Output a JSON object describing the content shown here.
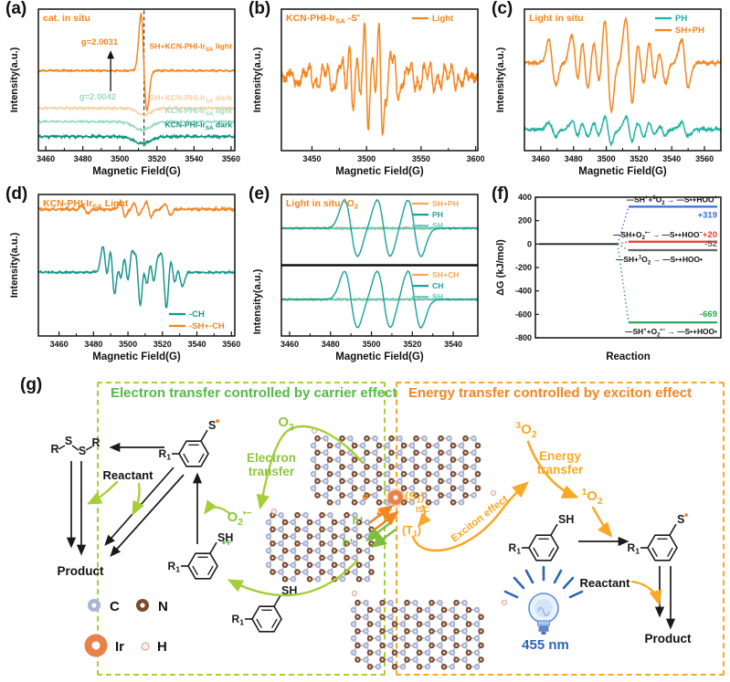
{
  "chart_data": [
    {
      "id": "a",
      "type": "line",
      "panel_label": "(a)",
      "title": {
        "html": "cat. in situ",
        "color": "#F5851F"
      },
      "xlabel": "Magnetic Field(G)",
      "ylabel": "Intensity(a.u.)",
      "xlim": [
        3456,
        3562
      ],
      "xticks": [
        3460,
        3480,
        3500,
        3520,
        3540,
        3560
      ],
      "marker_line_x": 3513,
      "annotations": [
        {
          "html": "g=2.0031",
          "color": "#F5851F",
          "x": 3489,
          "yf": 0.75
        },
        {
          "html": "g=2.0042",
          "color": "#97DBC4",
          "x": 3488,
          "yf": 0.36
        }
      ],
      "arrow": {
        "x": 3495,
        "y0f": 0.42,
        "y1f": 0.7
      },
      "series": [
        {
          "name": "SH+KCN-PHI-Ir<sub>SA</sub> light",
          "color": "#F5851F",
          "baseline": 0.565,
          "noise": 0.005,
          "signal": {
            "kind": "sharp",
            "center": 3513,
            "width": 1.6,
            "up": 0.4,
            "down": 0.28
          },
          "label": {
            "yf": 0.72
          }
        },
        {
          "name": "SH+KCN-PHI-Ir<sub>SA</sub> dark",
          "color": "#FBCFA0",
          "baseline": 0.3,
          "noise": 0.006,
          "signal": {
            "kind": "dip",
            "center": 3513,
            "width": 3.5,
            "amp": 0.05
          },
          "label": {
            "yf": 0.355
          }
        },
        {
          "name": "KCN-PHI-Ir<sub>SA</sub> light",
          "color": "#97DBC4",
          "baseline": 0.205,
          "noise": 0.006,
          "signal": {
            "kind": "dip",
            "center": 3512,
            "width": 4.5,
            "amp": 0.06
          },
          "label": {
            "yf": 0.265
          }
        },
        {
          "name": "KCN-PHI-Ir<sub>SA</sub> dark",
          "color": "#12917E",
          "baseline": 0.1,
          "noise": 0.007,
          "signal": {
            "kind": "dip",
            "center": 3512,
            "width": 4.5,
            "amp": 0.05
          },
          "label": {
            "yf": 0.165
          }
        }
      ]
    },
    {
      "id": "b",
      "type": "line",
      "panel_label": "(b)",
      "title": {
        "html": "KCN-PHI-Ir<sub>SA</sub>  -S<sup>•</sup>",
        "color": "#F5851F"
      },
      "legend": {
        "pos": "tr",
        "items": [
          {
            "label": "Light",
            "color": "#F5851F"
          }
        ]
      },
      "xlabel": "Magnetic Field(G)",
      "ylabel": "Intensity(a.u.)",
      "xlim": [
        3422,
        3602
      ],
      "xticks": [
        3450,
        3500,
        3550,
        3600
      ],
      "series": [
        {
          "name": "Light",
          "color": "#F5851F",
          "baseline": 0.52,
          "noise": 0.035,
          "signal": {
            "kind": "multiplet",
            "width": 1.7,
            "lines": [
              {
                "c": 3433,
                "a": 0.06
              },
              {
                "c": 3441,
                "a": -0.05
              },
              {
                "c": 3450,
                "a": 0.08
              },
              {
                "c": 3458,
                "a": -0.06
              },
              {
                "c": 3466,
                "a": 0.07
              },
              {
                "c": 3473,
                "a": -0.08
              },
              {
                "c": 3480,
                "a": 0.1
              },
              {
                "c": 3486,
                "a": 0.22
              },
              {
                "c": 3493,
                "a": 0.12
              },
              {
                "c": 3500,
                "a": 0.38
              },
              {
                "c": 3507,
                "a": 0.16
              },
              {
                "c": 3513,
                "a": 0.42
              },
              {
                "c": 3520,
                "a": -0.14
              },
              {
                "c": 3527,
                "a": 0.16
              },
              {
                "c": 3535,
                "a": -0.08
              },
              {
                "c": 3543,
                "a": 0.08
              },
              {
                "c": 3551,
                "a": -0.07
              },
              {
                "c": 3560,
                "a": 0.08
              },
              {
                "c": 3570,
                "a": -0.06
              },
              {
                "c": 3580,
                "a": 0.07
              },
              {
                "c": 3590,
                "a": -0.05
              }
            ]
          }
        }
      ]
    },
    {
      "id": "c",
      "type": "line",
      "panel_label": "(c)",
      "title": {
        "html": "Light in situ",
        "color": "#F5851F"
      },
      "legend": {
        "pos": "tr",
        "items": [
          {
            "label": "PH",
            "color": "#20B2A0"
          },
          {
            "label": "SH+PH",
            "color": "#F5851F"
          }
        ]
      },
      "xlabel": "Magnetic Field(G)",
      "ylabel": "Intensity(a.u.)",
      "xlim": [
        3450,
        3570
      ],
      "xticks": [
        3460,
        3480,
        3500,
        3520,
        3540,
        3560
      ],
      "series": [
        {
          "name": "SH+PH",
          "color": "#F5851F",
          "baseline": 0.62,
          "noise": 0.012,
          "signal": {
            "kind": "multiplet",
            "width": 2.1,
            "lines": [
              {
                "c": 3467,
                "a": 0.16
              },
              {
                "c": 3481,
                "a": 0.2
              },
              {
                "c": 3487,
                "a": 0.22
              },
              {
                "c": 3494,
                "a": 0.18
              },
              {
                "c": 3501,
                "a": 0.34
              },
              {
                "c": 3514,
                "a": 0.32
              },
              {
                "c": 3521,
                "a": 0.18
              },
              {
                "c": 3528,
                "a": 0.17
              },
              {
                "c": 3534,
                "a": 0.14
              },
              {
                "c": 3548,
                "a": 0.17
              }
            ]
          }
        },
        {
          "name": "PH",
          "color": "#20B2A0",
          "baseline": 0.15,
          "noise": 0.01,
          "signal": {
            "kind": "multiplet",
            "width": 2.0,
            "lines": [
              {
                "c": 3467,
                "a": 0.05
              },
              {
                "c": 3481,
                "a": 0.06
              },
              {
                "c": 3487,
                "a": 0.06
              },
              {
                "c": 3494,
                "a": 0.05
              },
              {
                "c": 3501,
                "a": 0.1
              },
              {
                "c": 3514,
                "a": 0.09
              },
              {
                "c": 3521,
                "a": 0.06
              },
              {
                "c": 3528,
                "a": 0.05
              },
              {
                "c": 3534,
                "a": 0.04
              },
              {
                "c": 3548,
                "a": 0.05
              }
            ]
          }
        }
      ]
    },
    {
      "id": "d",
      "type": "line",
      "panel_label": "(d)",
      "title": {
        "html": "KCN-PHI-Ir<sub>SA</sub>  Light",
        "color": "#F5851F"
      },
      "legend": {
        "pos": "br",
        "items": [
          {
            "label": "-CH",
            "color": "#17968C"
          },
          {
            "label": "-SH+-CH",
            "color": "#F5851F"
          }
        ]
      },
      "xlabel": "Magnetic Field(G)",
      "ylabel": "Intensity(a.u.)",
      "xlim": [
        3448,
        3562
      ],
      "xticks": [
        3460,
        3480,
        3500,
        3520,
        3540,
        3560
      ],
      "series": [
        {
          "name": "-SH+-CH",
          "color": "#F5851F",
          "baseline": 0.895,
          "noise": 0.008,
          "signal": {
            "kind": "multiplet",
            "width": 1.5,
            "lines": [
              {
                "c": 3475,
                "a": 0.03
              },
              {
                "c": 3497,
                "a": 0.05
              },
              {
                "c": 3505,
                "a": 0.04
              },
              {
                "c": 3512,
                "a": 0.05
              },
              {
                "c": 3523,
                "a": 0.04
              }
            ]
          }
        },
        {
          "name": "-CH",
          "color": "#17968C",
          "baseline": 0.45,
          "noise": 0.006,
          "signal": {
            "kind": "multiplet",
            "width": 1.6,
            "lines": [
              {
                "c": 3487,
                "a": 0.18
              },
              {
                "c": 3491,
                "a": 0.27
              },
              {
                "c": 3495,
                "a": 0.16
              },
              {
                "c": 3499,
                "a": 0.2
              },
              {
                "c": 3503,
                "a": 0.22
              },
              {
                "c": 3506,
                "a": 0.34
              },
              {
                "c": 3510,
                "a": 0.18
              },
              {
                "c": 3514,
                "a": 0.16
              },
              {
                "c": 3518,
                "a": 0.15
              },
              {
                "c": 3521,
                "a": 0.28
              },
              {
                "c": 3526,
                "a": 0.14
              },
              {
                "c": 3530,
                "a": 0.1
              }
            ]
          }
        }
      ]
    },
    {
      "id": "e",
      "type": "epr-stack",
      "panel_label": "(e)",
      "title": {
        "html": "Light  in situ <sup>1</sup>O<sub>2</sub>",
        "color": "#F5851F"
      },
      "xlabel": "Magnetic Field(G)",
      "ylabel": "Intensity(a.u.)",
      "xlim": [
        3456,
        3552
      ],
      "xticks": [
        3460,
        3480,
        3500,
        3520,
        3540
      ],
      "subpanels": [
        {
          "legend": [
            {
              "label": "SH+PH",
              "color": "#F9A65A"
            },
            {
              "label": "PH",
              "color": "#17A398"
            },
            {
              "label": "SH",
              "color": "#5BCDBB"
            }
          ],
          "series": [
            {
              "name": "SH+PH",
              "color": "#F9A65A",
              "baseline": 0.52,
              "noise": 0.01,
              "signal": {
                "kind": "flat"
              }
            },
            {
              "name": "SH",
              "color": "#5BCDBB",
              "baseline": 0.52,
              "noise": 0.01,
              "signal": {
                "kind": "flat"
              }
            },
            {
              "name": "PH",
              "color": "#17A398",
              "baseline": 0.52,
              "noise": 0.005,
              "signal": {
                "kind": "triplet",
                "centers": [
                  3490,
                  3506,
                  3521
                ],
                "width": 3.2,
                "amp": 0.4
              }
            }
          ]
        },
        {
          "legend": [
            {
              "label": "SH+CH",
              "color": "#F9A65A"
            },
            {
              "label": "CH",
              "color": "#17A398"
            },
            {
              "label": "SH",
              "color": "#5BCDBB"
            }
          ],
          "series": [
            {
              "name": "SH+CH",
              "color": "#F9A65A",
              "baseline": 0.52,
              "noise": 0.01,
              "signal": {
                "kind": "flat"
              }
            },
            {
              "name": "SH",
              "color": "#5BCDBB",
              "baseline": 0.52,
              "noise": 0.01,
              "signal": {
                "kind": "flat"
              }
            },
            {
              "name": "CH",
              "color": "#17A398",
              "baseline": 0.52,
              "noise": 0.005,
              "signal": {
                "kind": "triplet",
                "centers": [
                  3490,
                  3506,
                  3521
                ],
                "width": 3.2,
                "amp": 0.4
              }
            }
          ]
        }
      ]
    },
    {
      "id": "f",
      "type": "energy",
      "panel_label": "(f)",
      "xlabel": "Reaction",
      "ylabel": "ΔG (kJ/mol)",
      "ylim": [
        -800,
        400
      ],
      "yticks": [
        400,
        200,
        0,
        -200,
        -400,
        -600,
        -800
      ],
      "baseline": {
        "value": 0,
        "color": "#222222"
      },
      "levels": [
        {
          "value": 319,
          "display": "+319",
          "color": "#3B6FD4",
          "label": "—SH<sup>+</sup>+<sup>1</sup>O<sub>2</sub> → —S•+HOO<sup>+</sup>",
          "label_side": "above",
          "value_side": "below"
        },
        {
          "value": 20,
          "display": "+20",
          "color": "#E8392F",
          "label": "—SH+O<sub>2</sub><sup>•−</sup> → —S•+HOO<sup>−</sup>",
          "label_side": "above",
          "value_side": "right"
        },
        {
          "value": -52,
          "display": "-52",
          "color": "#666666",
          "label": "—SH+<sup>1</sup>O<sub>2</sub> → —S•+HOO•",
          "label_side": "below",
          "value_side": "right-above"
        },
        {
          "value": -669,
          "display": "-669",
          "color": "#1FA84F",
          "label": "—SH<sup>+</sup>+O<sub>2</sub><sup>•−</sup> → —S•+HOO•",
          "label_side": "below",
          "value_side": "above"
        }
      ]
    }
  ],
  "mechanism": {
    "panel_label": "(g)",
    "left_box": {
      "title": "Electron transfer controlled by carrier effect",
      "color": "#55B947",
      "border_color": "#A8D133"
    },
    "right_box": {
      "title": "Energy transfer controlled by exciton effect",
      "color": "#F5851F",
      "border_color": "#F9A825"
    },
    "labels": {
      "o2": "O<sub>2</sub>",
      "electron_transfer": "Electron<br>transfer",
      "superoxide": "O<sub>2</sub><sup>•−</sup>",
      "reactant_left": "Reactant",
      "product_left": "Product",
      "o2_triplet": "<sup>3</sup>O<sub>2</sub>",
      "energy_transfer": "Energy<br>transfer",
      "o2_singlet": "<sup>1</sup>O<sub>2</sub>",
      "reactant_right": "Reactant",
      "product_right": "Product",
      "wavelength": "455 nm",
      "r1": "R<sub>1</sub>",
      "s_radical": "S",
      "sh": "SH",
      "sh_cation_mark": "•+",
      "rssr_letters": [
        "R",
        "S",
        "S",
        "R"
      ],
      "e_minus": "e<sup>−</sup>",
      "h_plus": "h<sup>+</sup>",
      "s1": "(S<sub>1</sub>)",
      "t1": "(T<sub>1</sub>)",
      "isc": "ISC",
      "exciton": "Exciton effect"
    },
    "colors": {
      "green_arrow": "#A6CE39",
      "orange_arrow": "#F9A825",
      "e_color": "#F5851F",
      "h_color": "#7DBE3C",
      "radical_dot": "#F58220",
      "cation_mark": "#5CB947",
      "bulb_blue": "#2E64B8"
    },
    "atom_legend": [
      {
        "symbol": "C",
        "color": "#A9B3D6"
      },
      {
        "symbol": "N",
        "color": "#7E4A2F"
      },
      {
        "symbol": "Ir",
        "color": "#E8824A"
      },
      {
        "symbol": "H",
        "color": "#FBEFEC"
      }
    ]
  }
}
